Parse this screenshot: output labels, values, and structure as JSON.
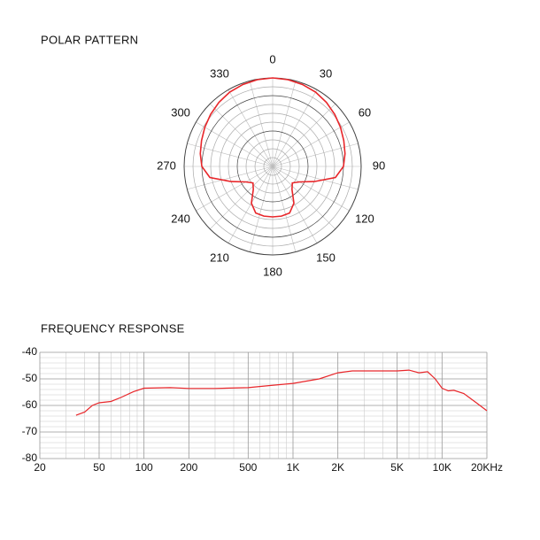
{
  "chart_data": [
    {
      "type": "polar",
      "title": "POLAR PATTERN",
      "color": "#e8262a",
      "thetaticks": [
        0,
        30,
        60,
        90,
        120,
        150,
        180,
        210,
        240,
        270,
        300,
        330
      ],
      "rlim": [
        0,
        1
      ],
      "rticks": [
        0.1,
        0.2,
        0.3,
        0.4,
        0.5,
        0.6,
        0.7,
        0.8,
        0.9,
        1.0
      ],
      "theta": [
        0,
        10,
        20,
        30,
        40,
        50,
        60,
        70,
        80,
        90,
        100,
        110,
        120,
        130,
        140,
        150,
        160,
        170,
        180,
        190,
        200,
        210,
        220,
        230,
        240,
        250,
        260,
        270,
        280,
        290,
        300,
        310,
        320,
        330,
        340,
        350
      ],
      "r": [
        1.0,
        0.995,
        0.985,
        0.97,
        0.945,
        0.915,
        0.885,
        0.855,
        0.83,
        0.8,
        0.72,
        0.5,
        0.35,
        0.29,
        0.34,
        0.48,
        0.56,
        0.57,
        0.57,
        0.57,
        0.56,
        0.48,
        0.34,
        0.29,
        0.35,
        0.5,
        0.72,
        0.8,
        0.83,
        0.855,
        0.885,
        0.915,
        0.945,
        0.97,
        0.985,
        0.995
      ],
      "grid": true
    },
    {
      "type": "line",
      "title": "FREQUENCY RESPONSE",
      "color": "#e8262a",
      "xscale": "log",
      "grid": true,
      "xlim": [
        20,
        20000
      ],
      "xticks": [
        20,
        50,
        100,
        200,
        500,
        {
          "value": 1000,
          "label": "1K"
        },
        {
          "value": 2000,
          "label": "2K"
        },
        {
          "value": 5000,
          "label": "5K"
        },
        {
          "value": 10000,
          "label": "10K"
        },
        {
          "value": 20000,
          "label": "20KHz"
        }
      ],
      "xminorticks": [
        30,
        40,
        60,
        70,
        80,
        90,
        300,
        400,
        600,
        700,
        800,
        900,
        3000,
        4000,
        6000,
        7000,
        8000,
        9000
      ],
      "ylim": [
        -80,
        -40
      ],
      "yticks": [
        -40,
        -50,
        -60,
        -70,
        -80
      ],
      "yminorticks": [
        -42,
        -44,
        -46,
        -48,
        -52,
        -54,
        -56,
        -58,
        -62,
        -64,
        -66,
        -68,
        -72,
        -74,
        -76,
        -78
      ],
      "x": [
        35,
        40,
        45,
        50,
        60,
        70,
        85,
        100,
        150,
        200,
        300,
        500,
        700,
        1000,
        1500,
        2000,
        2500,
        3000,
        5000,
        6000,
        7000,
        8000,
        9000,
        10000,
        11000,
        12000,
        14000,
        17000,
        20000
      ],
      "values": [
        -63.7,
        -62.5,
        -60,
        -59,
        -58.5,
        -57,
        -54.8,
        -53.5,
        -53.3,
        -53.6,
        -53.6,
        -53.3,
        -52.5,
        -51.7,
        -50,
        -47.7,
        -47,
        -47,
        -47,
        -46.7,
        -47.7,
        -47.3,
        -50,
        -53.5,
        -54.5,
        -54.3,
        -55.5,
        -59,
        -62
      ]
    }
  ]
}
